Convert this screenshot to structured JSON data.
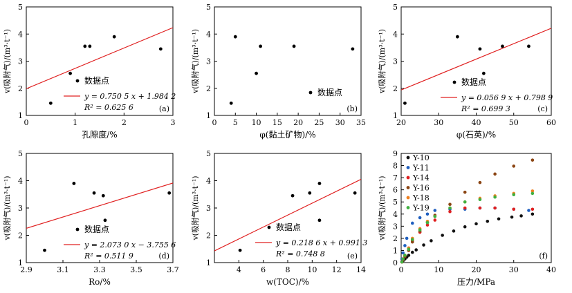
{
  "chart_data": [
    {
      "id": "a",
      "type": "scatter",
      "panel_label": "(a)",
      "xlabel": "孔隙度/%",
      "ylabel": "v(吸附气)/(m³·t⁻¹)",
      "xlim": [
        0,
        3
      ],
      "ylim": [
        1,
        5
      ],
      "xticks": [
        "0",
        "1",
        "2",
        "3"
      ],
      "yticks": [
        "1",
        "2",
        "3",
        "4",
        "5"
      ],
      "points": [
        [
          0.5,
          1.45
        ],
        [
          0.9,
          2.55
        ],
        [
          1.2,
          3.55
        ],
        [
          1.3,
          3.55
        ],
        [
          1.8,
          3.9
        ],
        [
          2.75,
          3.45
        ]
      ],
      "fit": {
        "slope": 0.7505,
        "intercept": 1.9842
      },
      "legend": {
        "points_label": "数据点",
        "equation": "y = 0.750 5 x + 1.984 2",
        "r2_label": "R² = 0.625 6"
      }
    },
    {
      "id": "b",
      "type": "scatter",
      "panel_label": "(b)",
      "xlabel": "φ(黏土矿物)/%",
      "ylabel": "v(吸附气)/(m³·t⁻¹)",
      "xlim": [
        0,
        35
      ],
      "ylim": [
        1,
        5
      ],
      "xticks": [
        "0",
        "5",
        "10",
        "15",
        "20",
        "25",
        "30",
        "35"
      ],
      "yticks": [
        "1",
        "2",
        "3",
        "4",
        "5"
      ],
      "points": [
        [
          4,
          1.45
        ],
        [
          5,
          3.9
        ],
        [
          10,
          2.55
        ],
        [
          11,
          3.55
        ],
        [
          19,
          3.55
        ],
        [
          33,
          3.45
        ]
      ],
      "legend": {
        "points_label": "数据点"
      }
    },
    {
      "id": "c",
      "type": "scatter",
      "panel_label": "(c)",
      "xlabel": "φ(石英)/%",
      "ylabel": "v(吸附气)/(m³·t⁻¹)",
      "xlim": [
        20,
        60
      ],
      "ylim": [
        1,
        5
      ],
      "xticks": [
        "20",
        "30",
        "40",
        "50",
        "60"
      ],
      "yticks": [
        "1",
        "2",
        "3",
        "4",
        "5"
      ],
      "points": [
        [
          21,
          1.45
        ],
        [
          35,
          3.9
        ],
        [
          41,
          3.45
        ],
        [
          42,
          2.55
        ],
        [
          47,
          3.55
        ],
        [
          54,
          3.55
        ]
      ],
      "fit": {
        "slope": 0.0569,
        "intercept": 0.7989
      },
      "legend": {
        "points_label": "数据点",
        "equation": "y = 0.056 9 x + 0.798 9",
        "r2_label": "R² = 0.699 3"
      }
    },
    {
      "id": "d",
      "type": "scatter",
      "panel_label": "(d)",
      "xlabel": "Ro/%",
      "ylabel": "v(吸附气)/(m³·t⁻¹)",
      "xlim": [
        2.9,
        3.7
      ],
      "ylim": [
        1,
        5
      ],
      "xticks": [
        "2.9",
        "3.1",
        "3.3",
        "3.5",
        "3.7"
      ],
      "yticks": [
        "1",
        "2",
        "3",
        "4",
        "5"
      ],
      "points": [
        [
          3.0,
          1.45
        ],
        [
          3.16,
          3.9
        ],
        [
          3.27,
          3.55
        ],
        [
          3.32,
          3.45
        ],
        [
          3.33,
          2.55
        ],
        [
          3.68,
          3.55
        ]
      ],
      "fit": {
        "slope": 2.073,
        "intercept": -3.7556
      },
      "legend": {
        "points_label": "数据点",
        "equation": "y = 2.073 0 x − 3.755 6",
        "r2_label": "R² = 0.511 9"
      }
    },
    {
      "id": "e",
      "type": "scatter",
      "panel_label": "(e)",
      "xlabel": "w(TOC)/%",
      "ylabel": "v(吸附气)/(m³·t⁻¹)",
      "xlim": [
        2,
        14
      ],
      "ylim": [
        1,
        5
      ],
      "xticks": [
        "4",
        "6",
        "8",
        "10",
        "12",
        "14"
      ],
      "yticks": [
        "1",
        "2",
        "3",
        "4",
        "5"
      ],
      "points": [
        [
          4.1,
          1.45
        ],
        [
          8.4,
          3.45
        ],
        [
          9.8,
          3.55
        ],
        [
          10.6,
          3.9
        ],
        [
          10.6,
          2.55
        ],
        [
          13.5,
          3.55
        ]
      ],
      "fit": {
        "slope": 0.2186,
        "intercept": 0.9913
      },
      "legend": {
        "points_label": "数据点",
        "equation": "y = 0.218 6 x + 0.991 3",
        "r2_label": "R² = 0.748 8"
      }
    },
    {
      "id": "f",
      "type": "scatter",
      "panel_label": "(f)",
      "xlabel": "压力/MPa",
      "ylabel": "v(吸附气)/(m³·t⁻¹)",
      "xlim": [
        0,
        40
      ],
      "ylim": [
        0,
        9
      ],
      "xticks": [
        "0",
        "10",
        "20",
        "30",
        "40"
      ],
      "yticks": [
        "0",
        "1",
        "2",
        "3",
        "4",
        "5",
        "6",
        "7",
        "8",
        "9"
      ],
      "series": [
        {
          "name": "Y-10",
          "color": "#111111",
          "points": [
            [
              0.2,
              0.05
            ],
            [
              0.5,
              0.15
            ],
            [
              1,
              0.3
            ],
            [
              1.5,
              0.45
            ],
            [
              2,
              0.6
            ],
            [
              3,
              0.85
            ],
            [
              4,
              1.05
            ],
            [
              6,
              1.45
            ],
            [
              8,
              1.8
            ],
            [
              11,
              2.25
            ],
            [
              14,
              2.6
            ],
            [
              17,
              2.95
            ],
            [
              20,
              3.2
            ],
            [
              23,
              3.4
            ],
            [
              26,
              3.6
            ],
            [
              29.5,
              3.75
            ],
            [
              32,
              3.85
            ],
            [
              35,
              4.0
            ]
          ]
        },
        {
          "name": "Y-11",
          "color": "#1f5fbf",
          "points": [
            [
              0.2,
              0.3
            ],
            [
              0.5,
              0.8
            ],
            [
              1,
              1.4
            ],
            [
              1.5,
              2.0
            ],
            [
              3,
              3.25
            ],
            [
              5,
              3.7
            ],
            [
              7,
              4.0
            ],
            [
              9,
              4.3
            ],
            [
              13,
              4.4
            ],
            [
              17,
              4.4
            ],
            [
              21,
              4.5
            ],
            [
              25,
              4.5
            ],
            [
              30,
              4.4
            ],
            [
              34,
              4.3
            ]
          ]
        },
        {
          "name": "Y-14",
          "color": "#e02020",
          "points": [
            [
              0.2,
              0.05
            ],
            [
              0.5,
              0.3
            ],
            [
              1,
              0.6
            ],
            [
              2,
              1.2
            ],
            [
              3,
              1.8
            ],
            [
              5,
              2.5
            ],
            [
              7,
              3.1
            ],
            [
              9,
              3.5
            ],
            [
              13,
              4.2
            ],
            [
              17,
              4.5
            ],
            [
              21,
              4.5
            ],
            [
              25,
              4.5
            ],
            [
              30,
              4.4
            ],
            [
              35,
              4.4
            ]
          ]
        },
        {
          "name": "Y-16",
          "color": "#8b4513",
          "points": [
            [
              0.2,
              0.05
            ],
            [
              0.5,
              0.25
            ],
            [
              1,
              0.5
            ],
            [
              2,
              1.0
            ],
            [
              3,
              1.7
            ],
            [
              5,
              2.6
            ],
            [
              7,
              3.3
            ],
            [
              9,
              3.9
            ],
            [
              13,
              4.8
            ],
            [
              17,
              5.8
            ],
            [
              21,
              6.6
            ],
            [
              25,
              7.3
            ],
            [
              30,
              7.95
            ],
            [
              35,
              8.45
            ]
          ]
        },
        {
          "name": "Y-18",
          "color": "#f08020",
          "points": [
            [
              0.2,
              0.05
            ],
            [
              0.5,
              0.3
            ],
            [
              1,
              0.6
            ],
            [
              2,
              1.2
            ],
            [
              3,
              2.0
            ],
            [
              5,
              2.8
            ],
            [
              7,
              3.4
            ],
            [
              9,
              3.8
            ],
            [
              13,
              4.5
            ],
            [
              17,
              5.0
            ],
            [
              21,
              5.3
            ],
            [
              25,
              5.5
            ],
            [
              30,
              5.7
            ],
            [
              35,
              5.9
            ]
          ]
        },
        {
          "name": "Y-19",
          "color": "#40b040",
          "points": [
            [
              0.2,
              0.05
            ],
            [
              0.5,
              0.3
            ],
            [
              1,
              0.6
            ],
            [
              2,
              1.1
            ],
            [
              3,
              1.9
            ],
            [
              5,
              2.7
            ],
            [
              7,
              3.3
            ],
            [
              9,
              3.8
            ],
            [
              13,
              4.5
            ],
            [
              17,
              5.0
            ],
            [
              21,
              5.2
            ],
            [
              25,
              5.4
            ],
            [
              30,
              5.6
            ],
            [
              35,
              5.7
            ]
          ]
        }
      ]
    }
  ]
}
